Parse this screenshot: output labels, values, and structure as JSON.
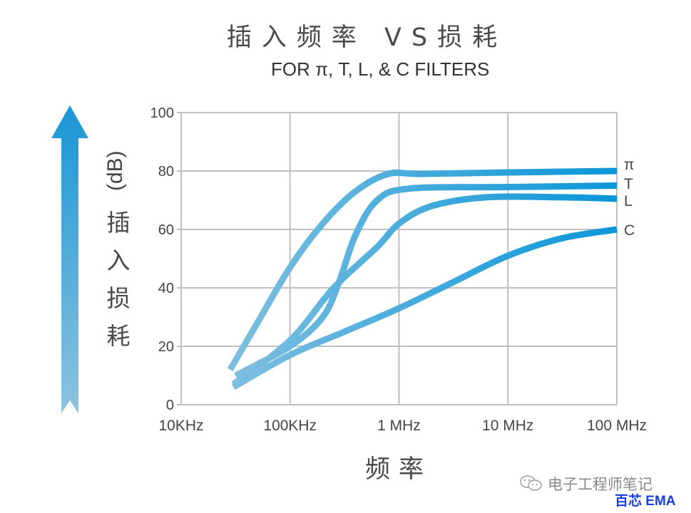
{
  "chart_data": {
    "type": "line",
    "title": "插入频率 VS损耗",
    "subtitle": "FOR π, T, L, & C FILTERS",
    "xlabel": "频率",
    "ylabel": "插入损耗 (dB)",
    "ylabel_unit": "(dB)",
    "ylabel_text": [
      "插",
      "入",
      "损",
      "耗"
    ],
    "x_scale": "log",
    "x_ticks": [
      "10KHz",
      "100KHz",
      "1 MHz",
      "10 MHz",
      "100 MHz"
    ],
    "y_ticks": [
      0,
      20,
      40,
      60,
      80,
      100
    ],
    "ylim": [
      0,
      100
    ],
    "grid": true,
    "legend_position": "right (inline labels at line ends)",
    "x_decades_note": "x expressed as decades above 10KHz (0=10KHz, 1=100KHz, 2=1MHz, 3=10MHz, 4=100MHz)",
    "series": [
      {
        "name": "π",
        "points": [
          [
            0.45,
            12
          ],
          [
            0.7,
            28
          ],
          [
            1.0,
            47
          ],
          [
            1.3,
            62
          ],
          [
            1.6,
            73
          ],
          [
            1.9,
            79
          ],
          [
            2.2,
            79
          ],
          [
            3.0,
            79.5
          ],
          [
            4.0,
            80
          ]
        ]
      },
      {
        "name": "T",
        "points": [
          [
            0.5,
            10
          ],
          [
            1.0,
            20
          ],
          [
            1.3,
            30
          ],
          [
            1.45,
            42
          ],
          [
            1.6,
            58
          ],
          [
            1.8,
            70
          ],
          [
            2.1,
            74
          ],
          [
            3.0,
            74.5
          ],
          [
            4.0,
            75
          ]
        ]
      },
      {
        "name": "L",
        "points": [
          [
            0.48,
            7
          ],
          [
            1.0,
            22
          ],
          [
            1.4,
            40
          ],
          [
            1.8,
            54
          ],
          [
            2.0,
            62
          ],
          [
            2.3,
            68
          ],
          [
            2.8,
            71
          ],
          [
            3.5,
            71
          ],
          [
            4.0,
            70.5
          ]
        ]
      },
      {
        "name": "C",
        "points": [
          [
            0.48,
            6
          ],
          [
            1.0,
            17
          ],
          [
            1.5,
            25
          ],
          [
            2.0,
            33
          ],
          [
            2.5,
            42
          ],
          [
            3.0,
            51
          ],
          [
            3.5,
            57
          ],
          [
            4.0,
            60
          ]
        ]
      }
    ],
    "colors": {
      "line_start": "#7fbfdf",
      "line_end": "#0a96d8",
      "grid": "#c0c0c0",
      "arrow_top": "#1a96d6",
      "arrow_bottom": "#86c0de"
    }
  },
  "watermark": {
    "account": "电子工程师笔记",
    "brand": "百芯 EMA",
    "icon": "wechat-icon"
  }
}
